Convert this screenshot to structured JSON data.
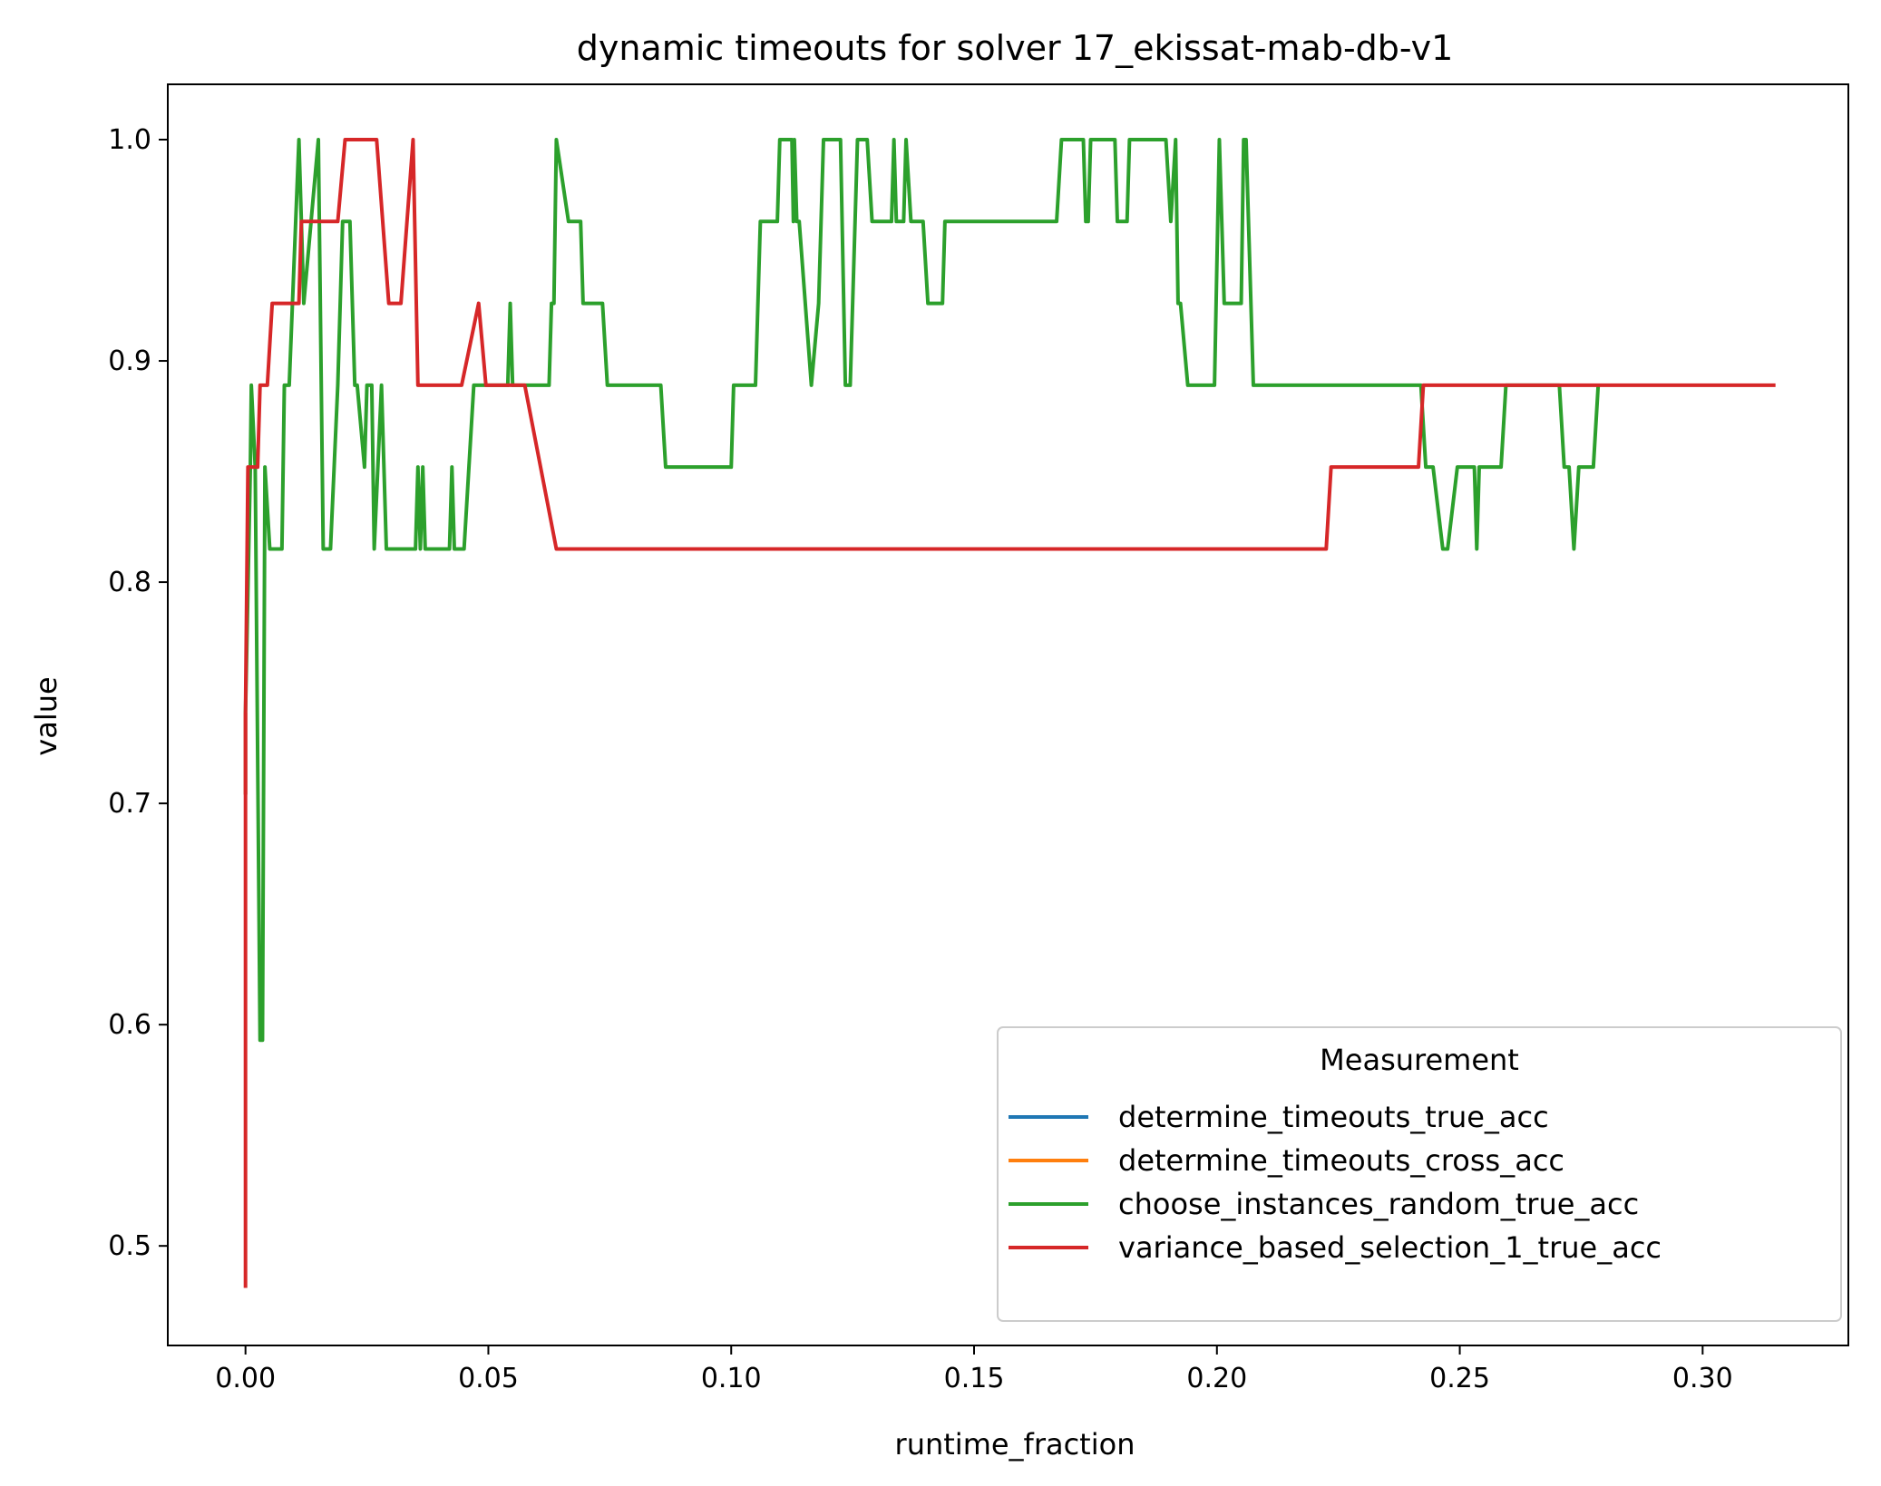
{
  "chart_data": {
    "type": "line",
    "title": "dynamic timeouts for solver 17_ekissat-mab-db-v1",
    "xlabel": "runtime_fraction",
    "ylabel": "value",
    "xlim": [
      -0.016,
      0.33
    ],
    "ylim": [
      0.455,
      1.025
    ],
    "xticks": [
      0.0,
      0.05,
      0.1,
      0.15,
      0.2,
      0.25,
      0.3
    ],
    "xtick_labels": [
      "0.00",
      "0.05",
      "0.10",
      "0.15",
      "0.20",
      "0.25",
      "0.30"
    ],
    "yticks": [
      0.5,
      0.6,
      0.7,
      0.8,
      0.9,
      1.0
    ],
    "ytick_labels": [
      "0.5",
      "0.6",
      "0.7",
      "0.8",
      "0.9",
      "1.0"
    ],
    "grid": false,
    "legend": {
      "title": "Measurement",
      "placement": "lower-right",
      "entries": [
        {
          "label": "determine_timeouts_true_acc",
          "color": "#1f77b4"
        },
        {
          "label": "determine_timeouts_cross_acc",
          "color": "#ff7f0e"
        },
        {
          "label": "choose_instances_random_true_acc",
          "color": "#2ca02c"
        },
        {
          "label": "variance_based_selection_1_true_acc",
          "color": "#d62728"
        }
      ]
    },
    "series": [
      {
        "name": "determine_timeouts_true_acc",
        "color": "#1f77b4",
        "points": [
          [
            0.0,
            0.704
          ],
          [
            0.0,
            0.741
          ]
        ]
      },
      {
        "name": "determine_timeouts_cross_acc",
        "color": "#ff7f0e",
        "points": [
          [
            0.0,
            0.704
          ],
          [
            0.0,
            0.741
          ]
        ]
      },
      {
        "name": "choose_instances_random_true_acc",
        "color": "#2ca02c",
        "points": [
          [
            0.0,
            0.741
          ],
          [
            0.001,
            0.852
          ],
          [
            0.0012,
            0.889
          ],
          [
            0.002,
            0.852
          ],
          [
            0.003,
            0.593
          ],
          [
            0.0035,
            0.593
          ],
          [
            0.004,
            0.852
          ],
          [
            0.005,
            0.815
          ],
          [
            0.0075,
            0.815
          ],
          [
            0.008,
            0.889
          ],
          [
            0.009,
            0.889
          ],
          [
            0.011,
            1.0
          ],
          [
            0.012,
            0.926
          ],
          [
            0.015,
            1.0
          ],
          [
            0.016,
            0.815
          ],
          [
            0.0175,
            0.815
          ],
          [
            0.019,
            0.889
          ],
          [
            0.0195,
            0.926
          ],
          [
            0.02,
            0.963
          ],
          [
            0.0215,
            0.963
          ],
          [
            0.0225,
            0.889
          ],
          [
            0.023,
            0.889
          ],
          [
            0.0245,
            0.852
          ],
          [
            0.025,
            0.889
          ],
          [
            0.026,
            0.889
          ],
          [
            0.0265,
            0.815
          ],
          [
            0.028,
            0.889
          ],
          [
            0.029,
            0.815
          ],
          [
            0.035,
            0.815
          ],
          [
            0.0355,
            0.852
          ],
          [
            0.036,
            0.815
          ],
          [
            0.0365,
            0.852
          ],
          [
            0.037,
            0.815
          ],
          [
            0.042,
            0.815
          ],
          [
            0.0425,
            0.852
          ],
          [
            0.043,
            0.815
          ],
          [
            0.045,
            0.815
          ],
          [
            0.047,
            0.889
          ],
          [
            0.054,
            0.889
          ],
          [
            0.0545,
            0.926
          ],
          [
            0.055,
            0.889
          ],
          [
            0.0625,
            0.889
          ],
          [
            0.063,
            0.926
          ],
          [
            0.0635,
            0.926
          ],
          [
            0.064,
            1.0
          ],
          [
            0.0665,
            0.963
          ],
          [
            0.069,
            0.963
          ],
          [
            0.0695,
            0.926
          ],
          [
            0.0735,
            0.926
          ],
          [
            0.0745,
            0.889
          ],
          [
            0.0855,
            0.889
          ],
          [
            0.0865,
            0.852
          ],
          [
            0.1,
            0.852
          ],
          [
            0.1005,
            0.889
          ],
          [
            0.105,
            0.889
          ],
          [
            0.106,
            0.963
          ],
          [
            0.1095,
            0.963
          ],
          [
            0.11,
            1.0
          ],
          [
            0.1125,
            1.0
          ],
          [
            0.1128,
            0.963
          ],
          [
            0.113,
            1.0
          ],
          [
            0.1135,
            0.963
          ],
          [
            0.114,
            0.963
          ],
          [
            0.1165,
            0.889
          ],
          [
            0.118,
            0.926
          ],
          [
            0.119,
            1.0
          ],
          [
            0.1225,
            1.0
          ],
          [
            0.1235,
            0.889
          ],
          [
            0.1245,
            0.889
          ],
          [
            0.126,
            1.0
          ],
          [
            0.128,
            1.0
          ],
          [
            0.129,
            0.963
          ],
          [
            0.133,
            0.963
          ],
          [
            0.1335,
            1.0
          ],
          [
            0.134,
            0.963
          ],
          [
            0.1355,
            0.963
          ],
          [
            0.136,
            1.0
          ],
          [
            0.137,
            0.963
          ],
          [
            0.1385,
            0.963
          ],
          [
            0.1395,
            0.963
          ],
          [
            0.1405,
            0.926
          ],
          [
            0.1435,
            0.926
          ],
          [
            0.144,
            0.963
          ],
          [
            0.167,
            0.963
          ],
          [
            0.168,
            1.0
          ],
          [
            0.1725,
            1.0
          ],
          [
            0.173,
            0.963
          ],
          [
            0.1735,
            0.963
          ],
          [
            0.174,
            1.0
          ],
          [
            0.179,
            1.0
          ],
          [
            0.1795,
            0.963
          ],
          [
            0.1815,
            0.963
          ],
          [
            0.182,
            1.0
          ],
          [
            0.1895,
            1.0
          ],
          [
            0.1905,
            0.963
          ],
          [
            0.1915,
            1.0
          ],
          [
            0.192,
            0.926
          ],
          [
            0.1925,
            0.926
          ],
          [
            0.194,
            0.889
          ],
          [
            0.1995,
            0.889
          ],
          [
            0.2005,
            1.0
          ],
          [
            0.2015,
            0.926
          ],
          [
            0.205,
            0.926
          ],
          [
            0.2055,
            1.0
          ],
          [
            0.206,
            1.0
          ],
          [
            0.2075,
            0.889
          ],
          [
            0.242,
            0.889
          ],
          [
            0.243,
            0.852
          ],
          [
            0.2445,
            0.852
          ],
          [
            0.2465,
            0.815
          ],
          [
            0.2475,
            0.815
          ],
          [
            0.2495,
            0.852
          ],
          [
            0.253,
            0.852
          ],
          [
            0.2535,
            0.815
          ],
          [
            0.254,
            0.852
          ],
          [
            0.2585,
            0.852
          ],
          [
            0.2595,
            0.889
          ],
          [
            0.2705,
            0.889
          ],
          [
            0.2715,
            0.852
          ],
          [
            0.2725,
            0.852
          ],
          [
            0.2735,
            0.815
          ],
          [
            0.2745,
            0.852
          ],
          [
            0.2775,
            0.852
          ],
          [
            0.2785,
            0.889
          ]
        ]
      },
      {
        "name": "variance_based_selection_1_true_acc",
        "color": "#d62728",
        "points": [
          [
            0.0,
            0.481
          ],
          [
            0.0,
            0.741
          ],
          [
            0.0005,
            0.852
          ],
          [
            0.0025,
            0.852
          ],
          [
            0.003,
            0.889
          ],
          [
            0.0045,
            0.889
          ],
          [
            0.0055,
            0.926
          ],
          [
            0.011,
            0.926
          ],
          [
            0.0115,
            0.963
          ],
          [
            0.019,
            0.963
          ],
          [
            0.0205,
            1.0
          ],
          [
            0.027,
            1.0
          ],
          [
            0.0295,
            0.926
          ],
          [
            0.032,
            0.926
          ],
          [
            0.0345,
            1.0
          ],
          [
            0.0355,
            0.889
          ],
          [
            0.0445,
            0.889
          ],
          [
            0.048,
            0.926
          ],
          [
            0.0495,
            0.889
          ],
          [
            0.0575,
            0.889
          ],
          [
            0.064,
            0.815
          ],
          [
            0.2225,
            0.815
          ],
          [
            0.2235,
            0.852
          ],
          [
            0.2415,
            0.852
          ],
          [
            0.2425,
            0.889
          ],
          [
            0.315,
            0.889
          ]
        ]
      }
    ]
  }
}
